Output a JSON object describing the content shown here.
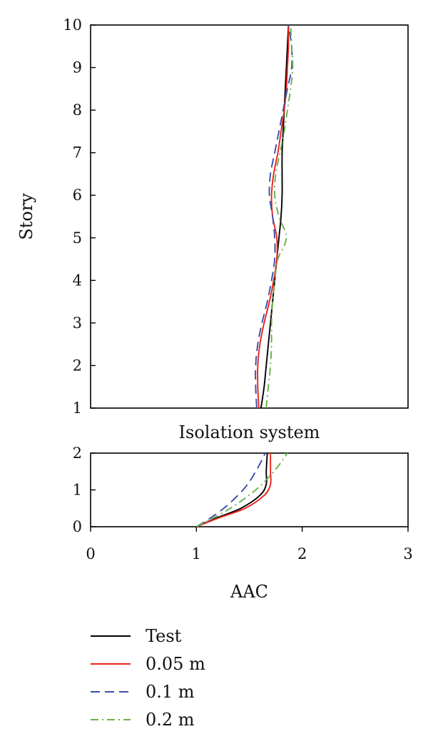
{
  "chart_data": {
    "type": "line",
    "xlabel": "AAC",
    "xlim": [
      0,
      3
    ],
    "xticks": [
      "0",
      "1",
      "2",
      "3"
    ],
    "legend_position": "bottom",
    "panels": [
      {
        "id": "superstructure",
        "title": "",
        "ylabel": "Story",
        "ylim": [
          1,
          10
        ],
        "yticks": [
          "1",
          "2",
          "3",
          "4",
          "5",
          "6",
          "7",
          "8",
          "9",
          "10"
        ],
        "series": [
          {
            "name": "Test",
            "color": "#000000",
            "dash": "solid",
            "points": [
              [
                1.61,
                1.0
              ],
              [
                1.64,
                1.5
              ],
              [
                1.66,
                2.0
              ],
              [
                1.68,
                2.5
              ],
              [
                1.7,
                3.0
              ],
              [
                1.72,
                3.5
              ],
              [
                1.74,
                4.0
              ],
              [
                1.76,
                4.5
              ],
              [
                1.78,
                5.0
              ],
              [
                1.8,
                5.5
              ],
              [
                1.81,
                6.0
              ],
              [
                1.81,
                6.5
              ],
              [
                1.81,
                7.0
              ],
              [
                1.82,
                7.5
              ],
              [
                1.83,
                8.0
              ],
              [
                1.84,
                8.5
              ],
              [
                1.85,
                9.0
              ],
              [
                1.86,
                9.5
              ],
              [
                1.87,
                10.0
              ]
            ]
          },
          {
            "name": "0.05 m",
            "color": "#e8231b",
            "dash": "solid",
            "points": [
              [
                1.59,
                1.0
              ],
              [
                1.58,
                1.5
              ],
              [
                1.58,
                2.0
              ],
              [
                1.6,
                2.5
              ],
              [
                1.64,
                3.0
              ],
              [
                1.69,
                3.5
              ],
              [
                1.73,
                4.0
              ],
              [
                1.76,
                4.5
              ],
              [
                1.76,
                5.0
              ],
              [
                1.72,
                5.5
              ],
              [
                1.71,
                6.0
              ],
              [
                1.73,
                6.5
              ],
              [
                1.77,
                7.0
              ],
              [
                1.8,
                7.5
              ],
              [
                1.83,
                8.0
              ],
              [
                1.85,
                8.5
              ],
              [
                1.86,
                9.0
              ],
              [
                1.87,
                9.5
              ],
              [
                1.87,
                10.0
              ]
            ]
          },
          {
            "name": "0.1 m",
            "color": "#3a4fa6",
            "dash": "dashed",
            "points": [
              [
                1.57,
                1.0
              ],
              [
                1.56,
                1.5
              ],
              [
                1.56,
                2.0
              ],
              [
                1.58,
                2.5
              ],
              [
                1.62,
                3.0
              ],
              [
                1.67,
                3.5
              ],
              [
                1.71,
                4.0
              ],
              [
                1.74,
                4.5
              ],
              [
                1.74,
                5.0
              ],
              [
                1.72,
                5.5
              ],
              [
                1.69,
                6.0
              ],
              [
                1.7,
                6.5
              ],
              [
                1.74,
                7.0
              ],
              [
                1.78,
                7.5
              ],
              [
                1.82,
                8.0
              ],
              [
                1.86,
                8.5
              ],
              [
                1.9,
                9.0
              ],
              [
                1.9,
                9.5
              ],
              [
                1.87,
                10.0
              ]
            ]
          },
          {
            "name": "0.2 m",
            "color": "#6ab04c",
            "dash": "dashdot",
            "points": [
              [
                1.66,
                1.0
              ],
              [
                1.68,
                1.5
              ],
              [
                1.7,
                2.0
              ],
              [
                1.71,
                2.5
              ],
              [
                1.71,
                3.0
              ],
              [
                1.72,
                3.5
              ],
              [
                1.74,
                4.0
              ],
              [
                1.77,
                4.5
              ],
              [
                1.85,
                5.0
              ],
              [
                1.78,
                5.5
              ],
              [
                1.74,
                6.0
              ],
              [
                1.75,
                6.5
              ],
              [
                1.79,
                7.0
              ],
              [
                1.83,
                7.5
              ],
              [
                1.86,
                8.0
              ],
              [
                1.89,
                8.5
              ],
              [
                1.91,
                9.0
              ],
              [
                1.9,
                9.5
              ],
              [
                1.89,
                10.0
              ]
            ]
          }
        ]
      },
      {
        "id": "isolation",
        "title": "Isolation system",
        "ylabel": "",
        "ylim": [
          0,
          2
        ],
        "yticks": [
          "0",
          "1",
          "2"
        ],
        "series": [
          {
            "name": "Test",
            "color": "#000000",
            "dash": "solid",
            "points": [
              [
                1.0,
                0.0
              ],
              [
                1.2,
                0.25
              ],
              [
                1.42,
                0.5
              ],
              [
                1.6,
                0.85
              ],
              [
                1.66,
                1.15
              ],
              [
                1.66,
                1.5
              ],
              [
                1.67,
                2.0
              ]
            ]
          },
          {
            "name": "0.05 m",
            "color": "#e8231b",
            "dash": "solid",
            "points": [
              [
                1.0,
                0.0
              ],
              [
                1.22,
                0.25
              ],
              [
                1.46,
                0.5
              ],
              [
                1.64,
                0.85
              ],
              [
                1.7,
                1.15
              ],
              [
                1.7,
                1.5
              ],
              [
                1.7,
                2.0
              ]
            ]
          },
          {
            "name": "0.1 m",
            "color": "#3a4fa6",
            "dash": "dashed",
            "points": [
              [
                1.0,
                0.0
              ],
              [
                1.14,
                0.25
              ],
              [
                1.3,
                0.6
              ],
              [
                1.47,
                1.1
              ],
              [
                1.58,
                1.6
              ],
              [
                1.65,
                2.0
              ]
            ]
          },
          {
            "name": "0.2 m",
            "color": "#6ab04c",
            "dash": "dashdot",
            "points": [
              [
                1.0,
                0.0
              ],
              [
                1.2,
                0.3
              ],
              [
                1.4,
                0.65
              ],
              [
                1.6,
                1.1
              ],
              [
                1.76,
                1.6
              ],
              [
                1.86,
                2.0
              ]
            ]
          }
        ]
      }
    ]
  }
}
